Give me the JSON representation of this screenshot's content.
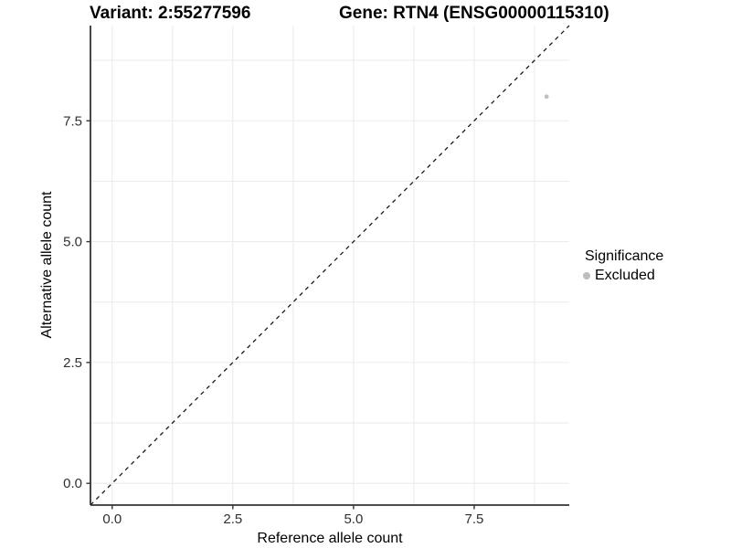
{
  "chart_data": {
    "type": "scatter",
    "titles": {
      "variant": "Variant: 2:55277596",
      "gene": "Gene: RTN4 (ENSG00000115310)"
    },
    "xlabel": "Reference allele count",
    "ylabel": "Alternative allele count",
    "xlim": [
      -0.45,
      9.47
    ],
    "ylim": [
      -0.45,
      9.47
    ],
    "x_ticks": {
      "values": [
        0,
        2.5,
        5,
        7.5
      ],
      "labels": [
        "0.0",
        "2.5",
        "5.0",
        "7.5"
      ],
      "minor": [
        1.25,
        3.75,
        6.25,
        8.75
      ]
    },
    "y_ticks": {
      "values": [
        0,
        2.5,
        5,
        7.5
      ],
      "labels": [
        "0.0",
        "2.5",
        "5.0",
        "7.5"
      ],
      "minor": [
        1.25,
        3.75,
        6.25,
        8.75
      ]
    },
    "grid": {
      "show": true,
      "color": "#ececec"
    },
    "abline": {
      "slope": 1,
      "intercept": 0,
      "linetype": "dashed",
      "color": "#1a1a1a"
    },
    "points": [
      {
        "x": 9,
        "y": 8,
        "significance": "Excluded",
        "color": "#c0c0c0",
        "radius": 2.4
      }
    ],
    "legend": {
      "title": "Significance",
      "position": "right",
      "items": [
        {
          "label": "Excluded",
          "color": "#bebebe",
          "marker": "circle"
        }
      ]
    }
  },
  "colors": {
    "background": "#ffffff",
    "axis_line": "#333333",
    "tick_label": "#303030",
    "text": "#000000"
  }
}
